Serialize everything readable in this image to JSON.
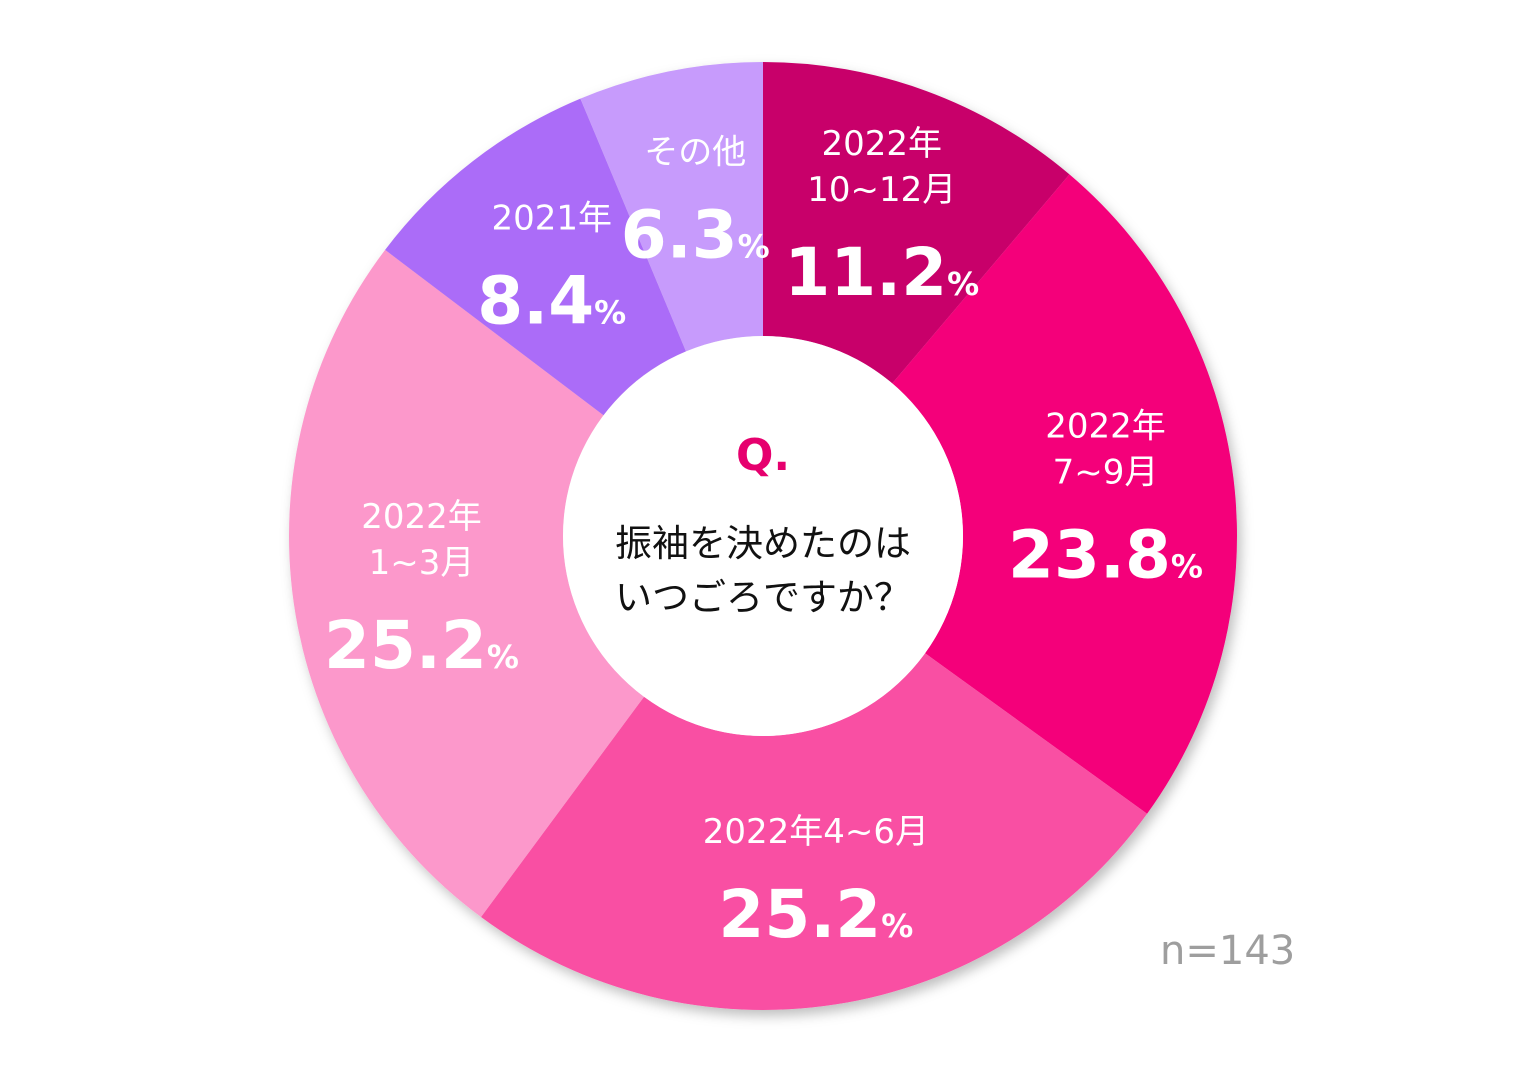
{
  "chart_data": {
    "type": "donut",
    "question_mark": "Q.",
    "question_lines": [
      "振袖を決めたのは",
      "いつごろですか？"
    ],
    "sample_size_label": "n=143",
    "percent_unit": "%",
    "slices": [
      {
        "label_lines": [
          "2022年",
          "10~12月"
        ],
        "value": 11.2,
        "value_label": "11.2",
        "color": "#c8006b"
      },
      {
        "label_lines": [
          "2022年",
          "7~9月"
        ],
        "value": 23.8,
        "value_label": "23.8",
        "color": "#f4067a"
      },
      {
        "label_lines": [
          "2022年4~6月"
        ],
        "value": 25.2,
        "value_label": "25.2",
        "color": "#f94fa3"
      },
      {
        "label_lines": [
          "2022年",
          "1~3月"
        ],
        "value": 25.2,
        "value_label": "25.2",
        "color": "#fc98cb"
      },
      {
        "label_lines": [
          "2021年"
        ],
        "value": 8.4,
        "value_label": "8.4",
        "color": "#ab6cf8"
      },
      {
        "label_lines": [
          "その他"
        ],
        "value": 6.3,
        "value_label": "6.3",
        "color": "#c79bfc"
      }
    ]
  }
}
